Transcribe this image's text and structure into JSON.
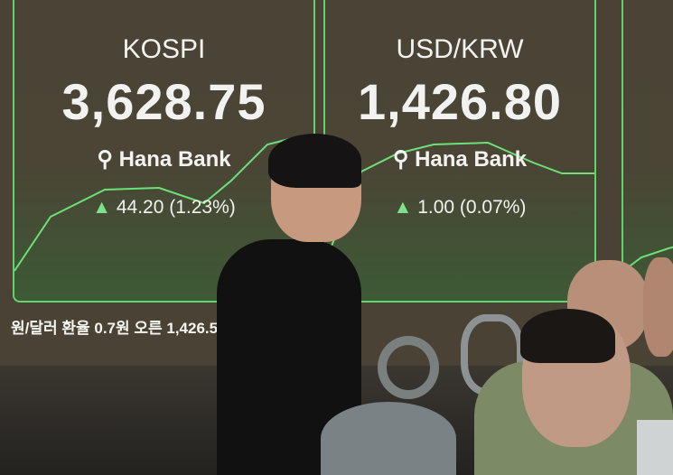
{
  "panels": [
    {
      "name": "KOSPI",
      "value": "3,628.75",
      "bank": "Hana Bank",
      "change": "44.20 (1.23%)"
    },
    {
      "name": "USD/KRW",
      "value": "1,426.80",
      "bank": "Hana Bank",
      "change": "1.00 (0.07%)"
    }
  ],
  "ticker": "원/달러 환율 0.7원 오른 1,426.5원",
  "colors": {
    "chart_line": "#5fd46a",
    "screen_bg": "#4a4234"
  }
}
